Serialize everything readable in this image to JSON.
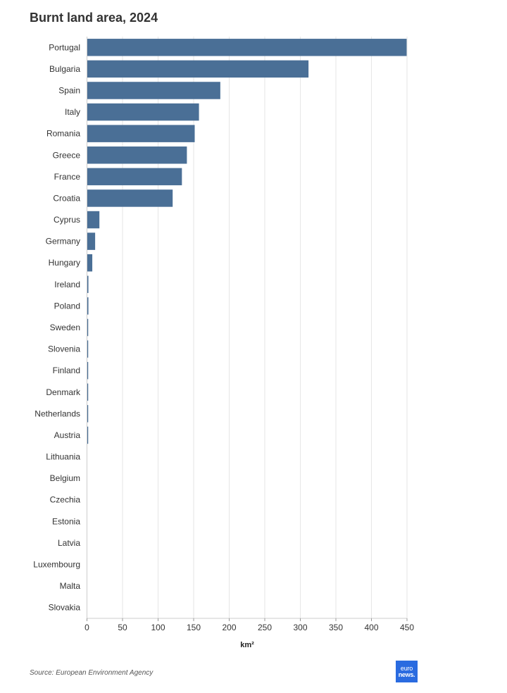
{
  "title": "Burnt land area, 2024",
  "source": "Source: European Environment Agency",
  "logo": {
    "line1": "euro",
    "line2": "news."
  },
  "colors": {
    "bar": "#4a6f96",
    "grid": "#e6e6e6",
    "axis": "#cccccc"
  },
  "chart_data": {
    "type": "bar",
    "orientation": "horizontal",
    "title": "Burnt land area, 2024",
    "xlabel": "km²",
    "ylabel": "",
    "xlim": [
      0,
      450
    ],
    "xticks": [
      0,
      50,
      100,
      150,
      200,
      250,
      300,
      350,
      400,
      450
    ],
    "grid": true,
    "categories": [
      "Portugal",
      "Bulgaria",
      "Spain",
      "Italy",
      "Romania",
      "Greece",
      "France",
      "Croatia",
      "Cyprus",
      "Germany",
      "Hungary",
      "Ireland",
      "Poland",
      "Sweden",
      "Slovenia",
      "Finland",
      "Denmark",
      "Netherlands",
      "Austria",
      "Lithuania",
      "Belgium",
      "Czechia",
      "Estonia",
      "Latvia",
      "Luxembourg",
      "Malta",
      "Slovakia"
    ],
    "values": [
      449,
      311,
      187,
      157,
      151,
      140,
      133,
      120,
      17,
      11,
      7,
      1.5,
      1.5,
      1.2,
      1,
      0.8,
      0.5,
      0.3,
      0.2,
      0,
      0,
      0,
      0,
      0,
      0,
      0,
      0
    ]
  }
}
